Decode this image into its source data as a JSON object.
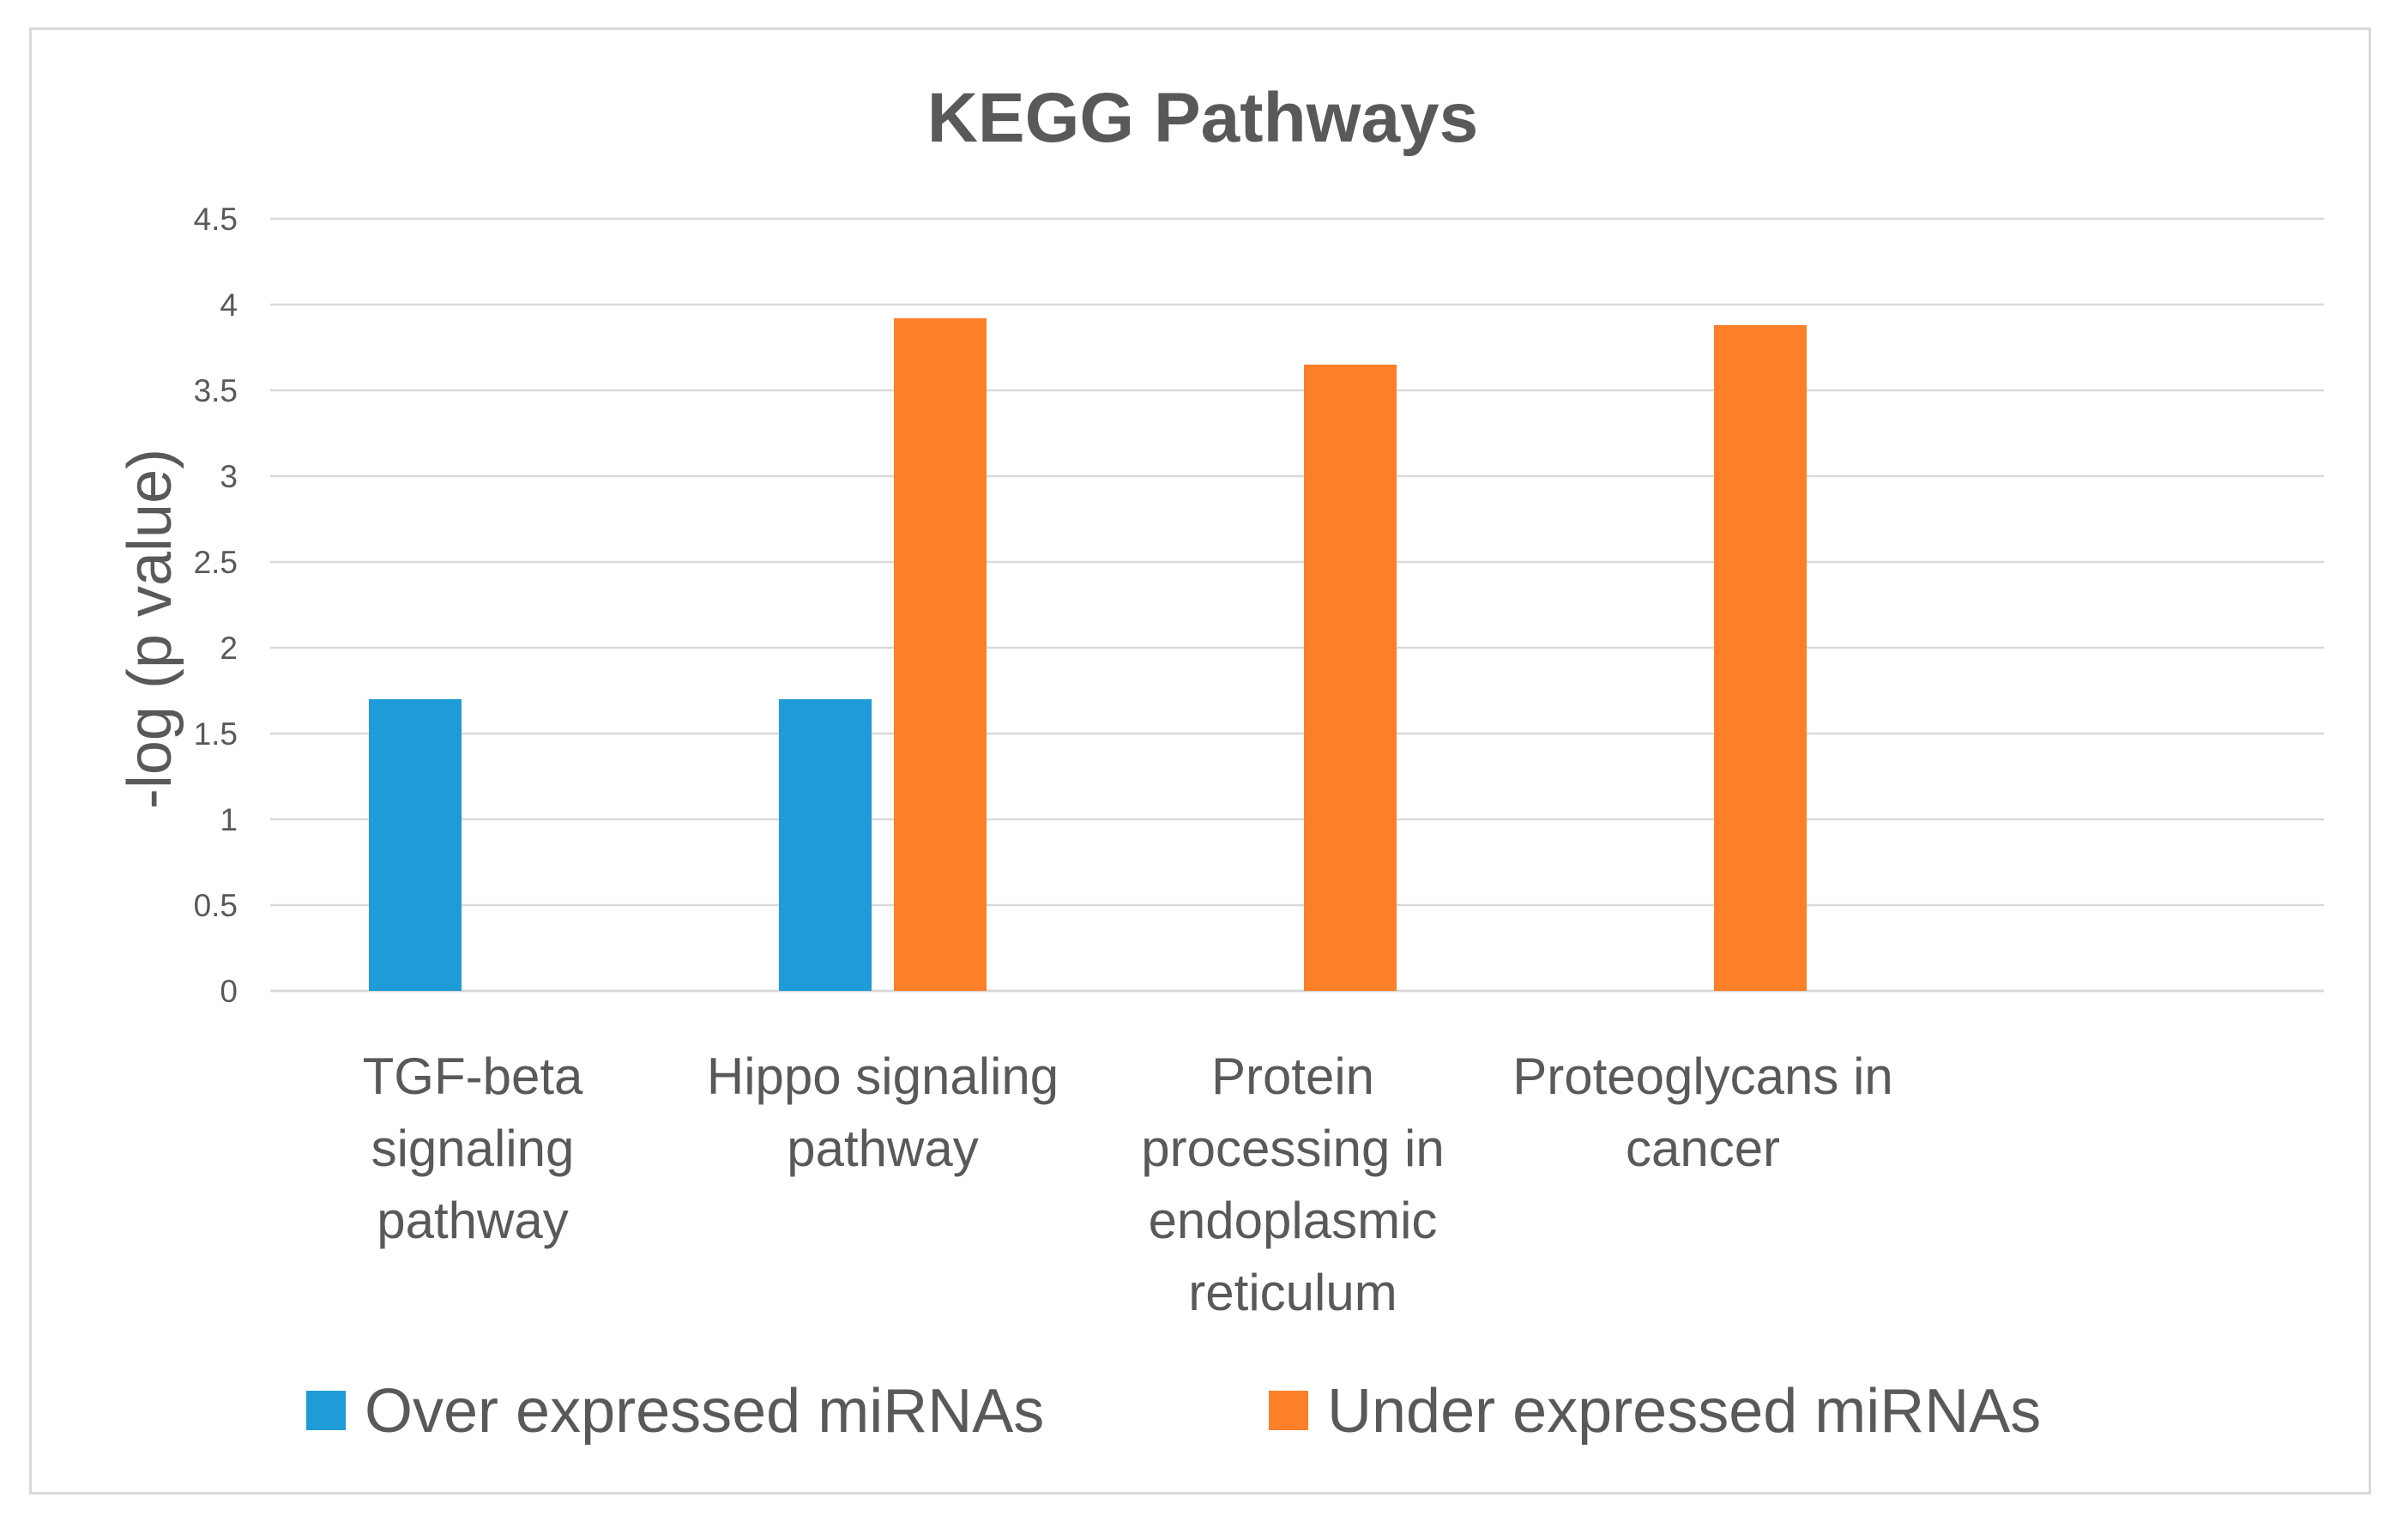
{
  "chart_data": {
    "type": "bar",
    "title": "KEGG Pathways",
    "xlabel": "",
    "ylabel": "-log (p value)",
    "ylim": [
      0,
      4.5
    ],
    "yticks": [
      "0",
      "0.5",
      "1",
      "1.5",
      "2",
      "2.5",
      "3",
      "3.5",
      "4",
      "4.5"
    ],
    "grid": true,
    "legend_position": "bottom",
    "categories": [
      [
        "TGF-beta",
        "signaling",
        "pathway"
      ],
      [
        "Hippo signaling",
        "pathway"
      ],
      [
        "Protein",
        "processing in",
        "endoplasmic",
        "reticulum"
      ],
      [
        "Proteoglycans in",
        "cancer"
      ]
    ],
    "series": [
      {
        "name": "Over expressed miRNAs",
        "color": "#1f9bd7",
        "values": [
          1.7,
          1.7,
          0,
          0
        ]
      },
      {
        "name": "Under expressed miRNAs",
        "color": "#fd7f27",
        "values": [
          0,
          3.92,
          3.65,
          3.88
        ]
      }
    ]
  }
}
